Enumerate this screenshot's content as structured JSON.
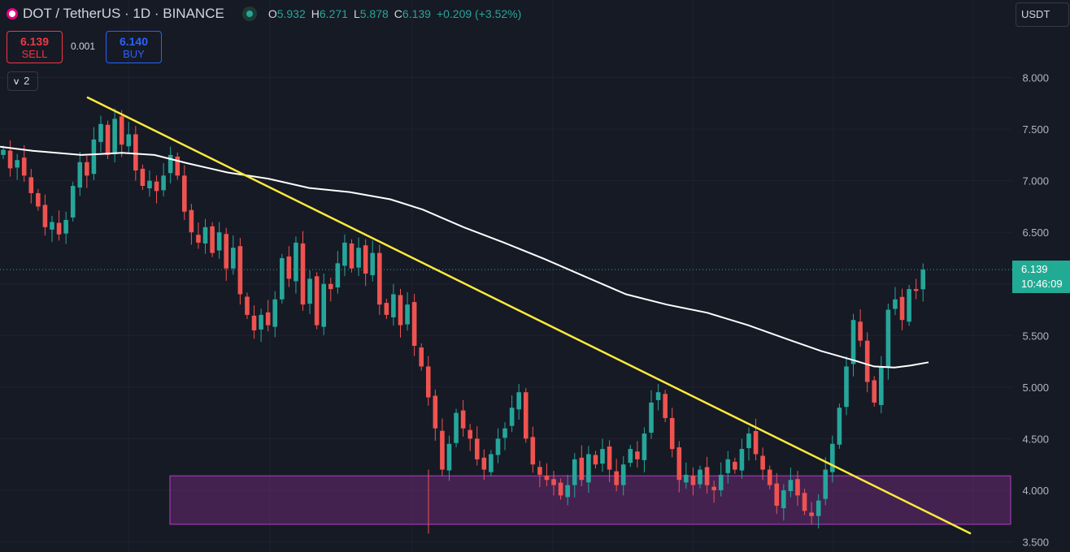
{
  "header": {
    "symbol_title": "DOT / TetherUS · 1D · BINANCE",
    "ohlc": {
      "o_label": "O",
      "o_value": "5.932",
      "h_label": "H",
      "h_value": "6.271",
      "l_label": "L",
      "l_value": "5.878",
      "c_label": "C",
      "c_value": "6.139",
      "change": "+0.209 (+3.52%)"
    },
    "currency": "USDT"
  },
  "trade": {
    "sell_price": "6.139",
    "sell_label": "SELL",
    "spread": "0.001",
    "buy_price": "6.140",
    "buy_label": "BUY"
  },
  "indicators_count": "2",
  "price_label": {
    "price": "6.139",
    "countdown": "10:46:09"
  },
  "colors": {
    "background": "#161a25",
    "up": "#26a69a",
    "down": "#ef5350",
    "trendline": "#ffeb3b",
    "moving_average": "#ffffff",
    "zone_fill": "#6a2a74",
    "zone_border": "#b43fc4",
    "price_label_bg": "#22ab94"
  },
  "icons": [
    "dot-logo-icon",
    "market-status-icon",
    "chevron-down-icon"
  ],
  "chart_data": {
    "type": "candlestick",
    "y_axis_ticks": [
      "3.500",
      "4.000",
      "4.500",
      "5.000",
      "5.500",
      "6.000",
      "6.500",
      "7.000",
      "7.500",
      "8.000"
    ],
    "ylim": [
      3.5,
      8.0
    ],
    "grid": true,
    "last_price": 6.139,
    "closes": [
      7.3,
      7.12,
      7.2,
      7.05,
      6.88,
      6.75,
      6.55,
      6.6,
      6.48,
      6.62,
      6.95,
      7.18,
      7.05,
      7.4,
      7.55,
      7.25,
      7.6,
      7.35,
      7.45,
      7.1,
      6.95,
      7.0,
      6.9,
      7.05,
      7.25,
      7.05,
      6.7,
      6.5,
      6.4,
      6.55,
      6.3,
      6.5,
      6.15,
      6.35,
      5.9,
      5.7,
      5.55,
      5.7,
      5.6,
      5.85,
      6.25,
      6.05,
      6.4,
      5.8,
      6.05,
      5.6,
      6.0,
      5.95,
      6.2,
      6.4,
      6.15,
      6.35,
      6.1,
      6.3,
      5.8,
      5.7,
      5.9,
      5.6,
      5.8,
      5.4,
      5.2,
      4.9,
      4.6,
      4.2,
      4.45,
      4.75,
      4.6,
      4.5,
      4.3,
      4.2,
      4.35,
      4.5,
      4.6,
      4.8,
      4.95,
      4.5,
      4.25,
      4.15,
      4.1,
      4.05,
      3.95,
      4.05,
      4.3,
      4.1,
      4.35,
      4.25,
      4.4,
      4.2,
      4.05,
      4.25,
      4.4,
      4.3,
      4.55,
      4.85,
      4.95,
      4.7,
      4.4,
      4.1,
      4.15,
      4.05,
      4.2,
      4.05,
      4.0,
      4.15,
      4.3,
      4.2,
      4.4,
      4.55,
      4.35,
      4.2,
      4.05,
      3.85,
      4.0,
      4.1,
      3.95,
      3.8,
      3.75,
      3.9,
      4.2,
      4.45,
      4.8,
      5.2,
      5.65,
      5.45,
      5.05,
      4.85,
      5.2,
      5.75,
      5.85,
      5.65,
      5.95,
      5.932,
      6.139
    ]
  }
}
